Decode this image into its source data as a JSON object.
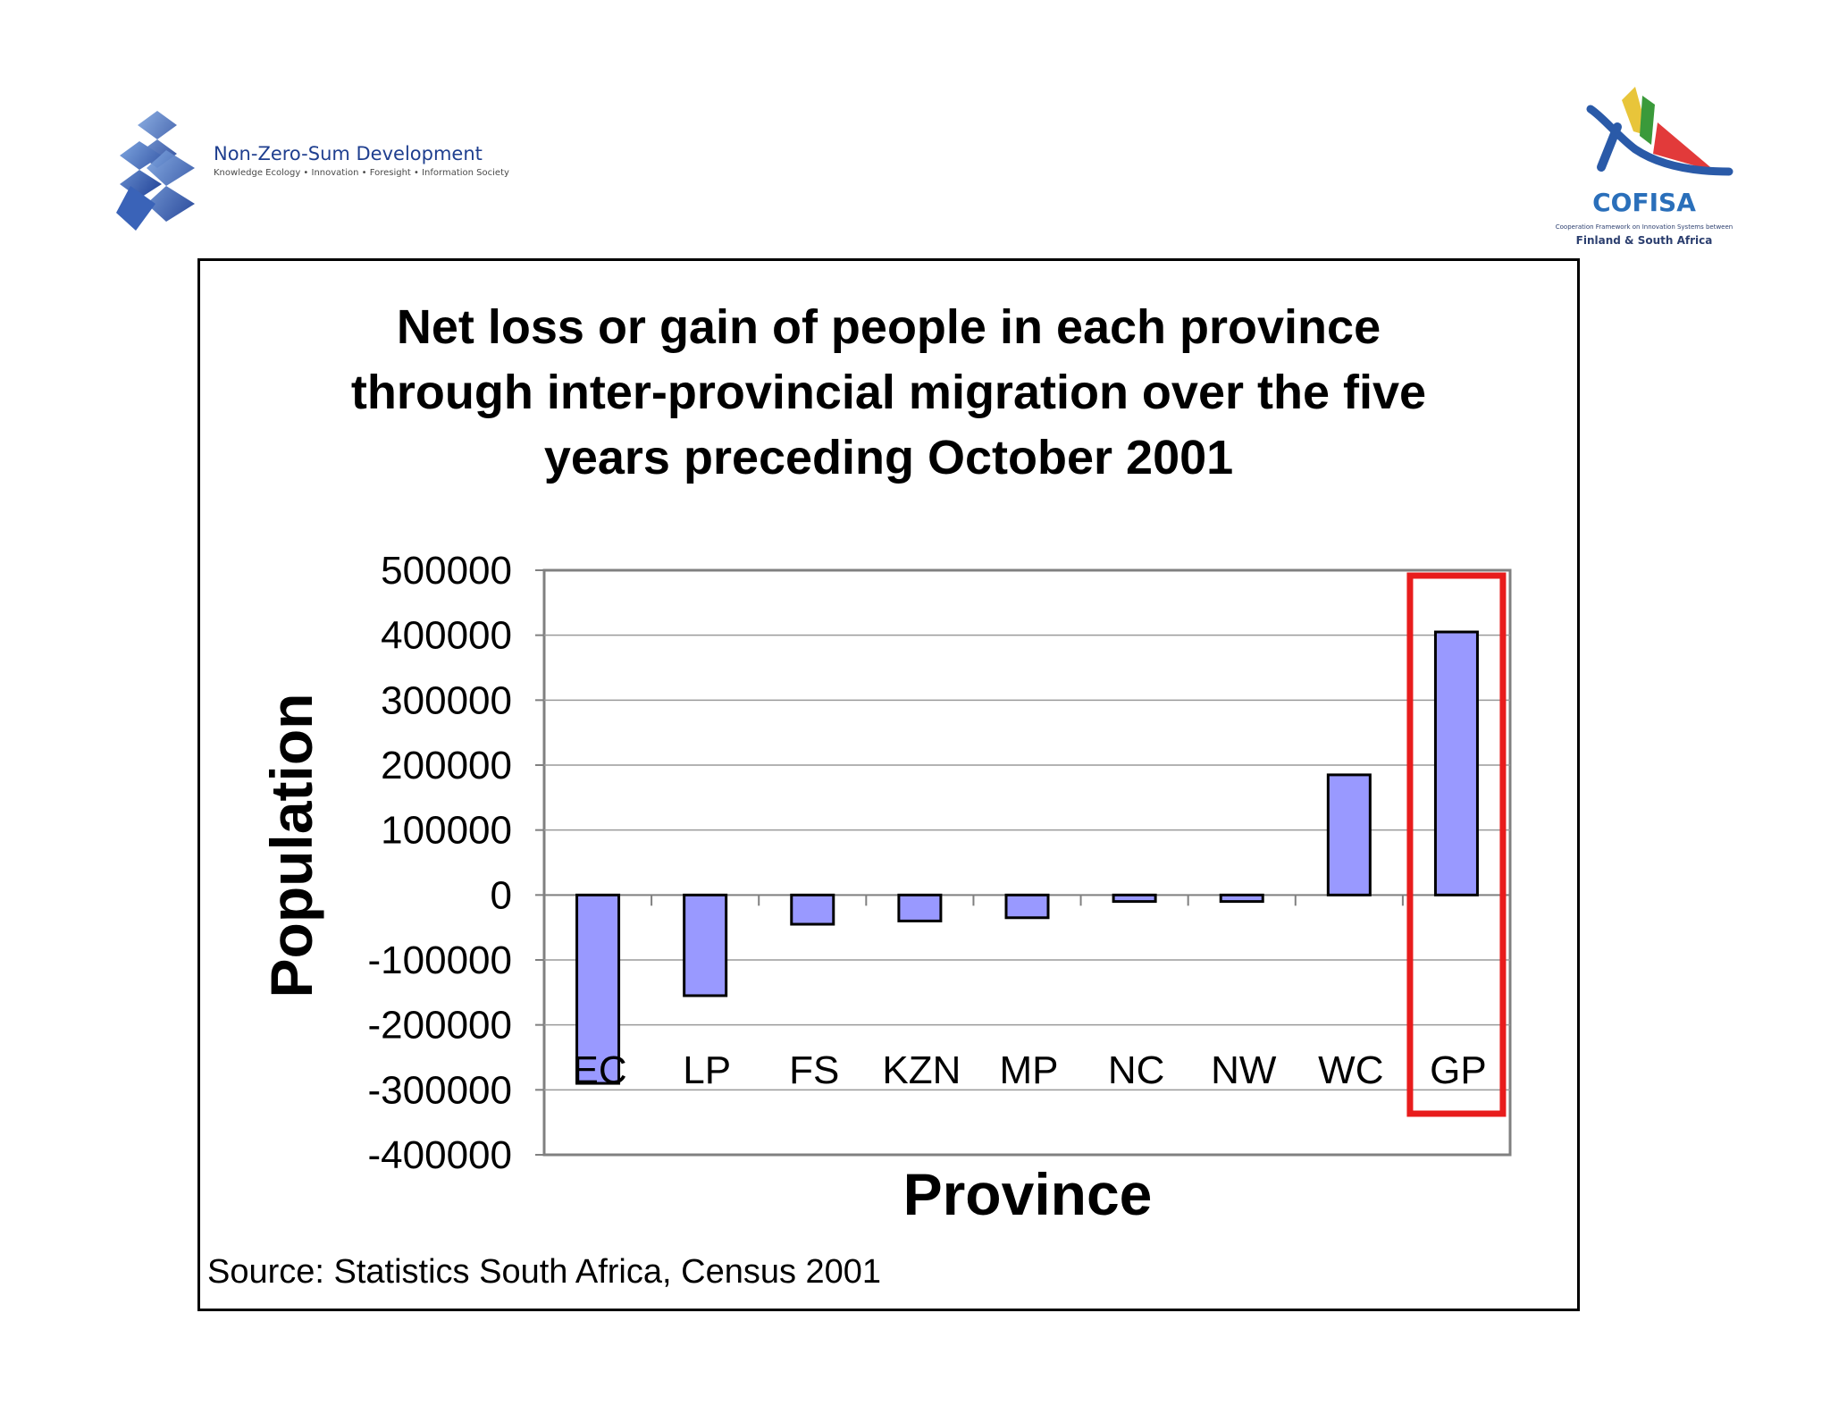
{
  "logos": {
    "left": {
      "name": "Non-Zero-Sum Development",
      "tagline": "Knowledge Ecology • Innovation • Foresight • Information Society"
    },
    "right": {
      "name": "COFISA",
      "tagline": "Cooperation Framework on Innovation Systems between",
      "tagline2": "Finland & South Africa"
    }
  },
  "colors": {
    "bar_fill": "#9999ff",
    "bar_stroke": "#000000",
    "highlight": "#e81c1c",
    "grid": "#9a9a9a",
    "axis": "#808080"
  },
  "source": "Source: Statistics South Africa, Census 2001",
  "chart_data": {
    "type": "bar",
    "title_lines": [
      "Net loss or gain of people in each province",
      "through inter-provincial migration over the five",
      "years preceding October 2001"
    ],
    "xlabel": "Province",
    "ylabel": "Population",
    "categories": [
      "EC",
      "LP",
      "FS",
      "KZN",
      "MP",
      "NC",
      "NW",
      "WC",
      "GP"
    ],
    "values": [
      -290000,
      -155000,
      -45000,
      -40000,
      -35000,
      -10000,
      -10000,
      185000,
      405000
    ],
    "ylim": [
      -400000,
      500000
    ],
    "yticks": [
      500000,
      400000,
      300000,
      200000,
      100000,
      0,
      -100000,
      -200000,
      -300000,
      -400000
    ],
    "grid": true,
    "highlighted_category": "GP"
  }
}
